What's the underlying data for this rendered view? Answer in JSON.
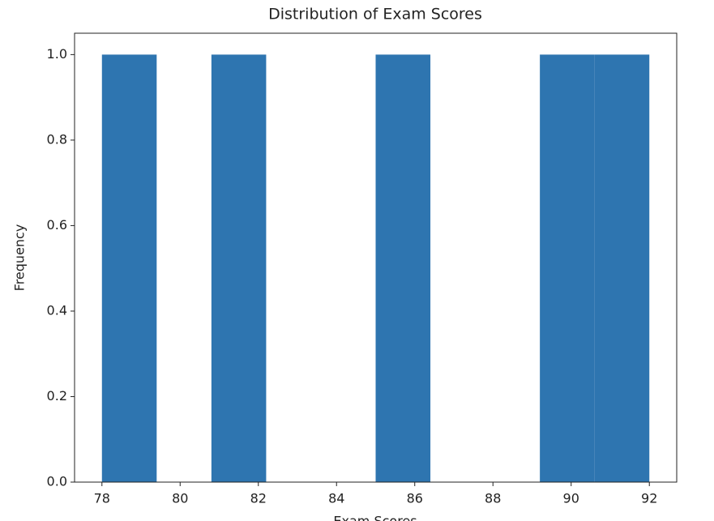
{
  "chart_data": {
    "type": "histogram",
    "title": "Distribution of Exam Scores",
    "xlabel": "Exam Scores",
    "ylabel": "Frequency",
    "bins": [
      78,
      79.4,
      80.8,
      82.2,
      83.6,
      85,
      86.4,
      87.8,
      89.2,
      90.6,
      92
    ],
    "values": [
      1,
      0,
      1,
      0,
      0,
      1,
      0,
      0,
      1,
      1
    ],
    "color": "#2e75b0",
    "xlim": [
      77.3,
      92.7
    ],
    "ylim": [
      0,
      1.05
    ],
    "xticks": [
      78,
      80,
      82,
      84,
      86,
      88,
      90,
      92
    ],
    "yticks": [
      {
        "value": 0,
        "label": "0.0"
      },
      0.2,
      0.4,
      0.6,
      0.8,
      {
        "value": 1,
        "label": "1.0"
      }
    ]
  }
}
